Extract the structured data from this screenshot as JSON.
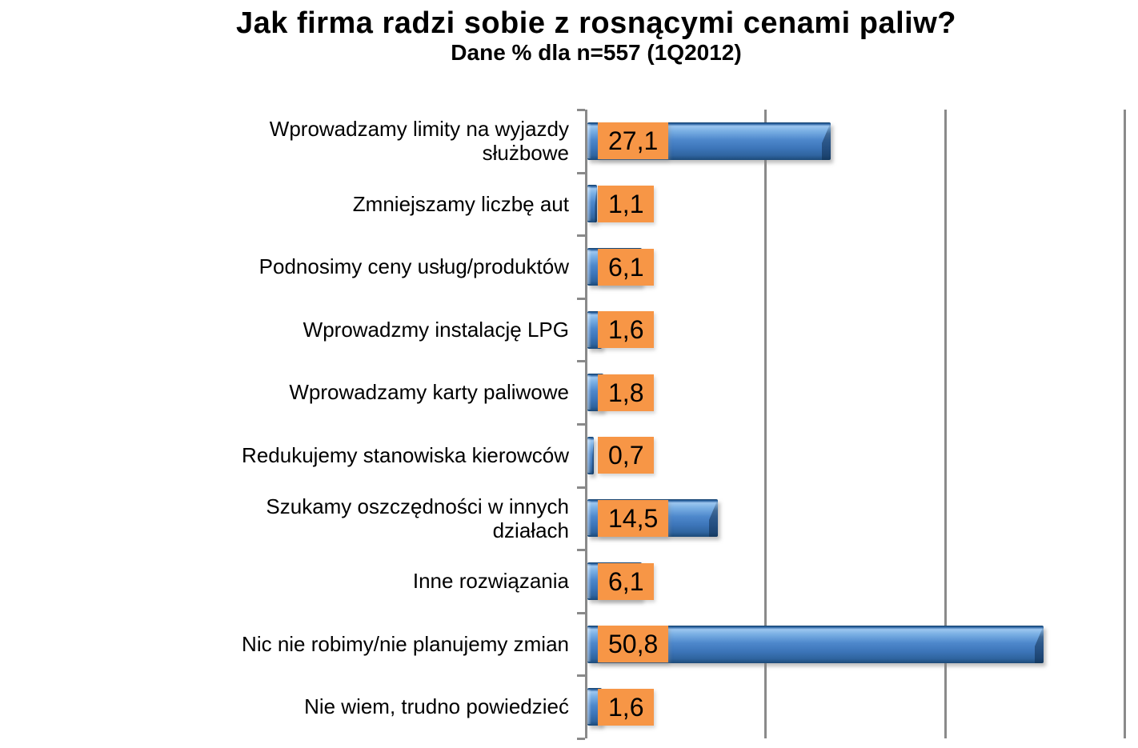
{
  "header": {
    "title": "Jak firma radzi sobie z rosnącymi cenami paliw?",
    "subtitle": "Dane % dla n=557 (1Q2012)"
  },
  "colors": {
    "bar_main": "#4e88cc",
    "bar_highlight": "#9dc6ef",
    "bar_dark": "#1c4a78",
    "value_label_bg": "#F79646",
    "axis_gray": "#8a8a8a",
    "text": "#000000",
    "background": "#ffffff"
  },
  "chart_data": {
    "type": "bar",
    "orientation": "horizontal",
    "title": "Jak firma radzi sobie z rosnącymi cenami paliw?",
    "subtitle": "Dane % dla n=557 (1Q2012)",
    "xlabel": "",
    "ylabel": "",
    "xlim": [
      0,
      60
    ],
    "gridlines_x": [
      20,
      40,
      60
    ],
    "grid": true,
    "legend": false,
    "decimal_separator": ",",
    "categories": [
      "Wprowadzamy limity na wyjazdy\nsłużbowe",
      "Zmniejszamy liczbę aut",
      "Podnosimy ceny usług/produktów",
      "Wprowadzmy instalację LPG",
      "Wprowadzamy karty paliwowe",
      "Redukujemy stanowiska kierowców",
      "Szukamy oszczędności w innych\ndziałach",
      "Inne rozwiązania",
      "Nic nie robimy/nie planujemy zmian",
      "Nie wiem, trudno powiedzieć"
    ],
    "values": [
      27.1,
      1.1,
      6.1,
      1.6,
      1.8,
      0.7,
      14.5,
      6.1,
      50.8,
      1.6
    ],
    "value_labels": [
      "27,1",
      "1,1",
      "6,1",
      "1,6",
      "1,8",
      "0,7",
      "14,5",
      "6,1",
      "50,8",
      "1,6"
    ]
  }
}
